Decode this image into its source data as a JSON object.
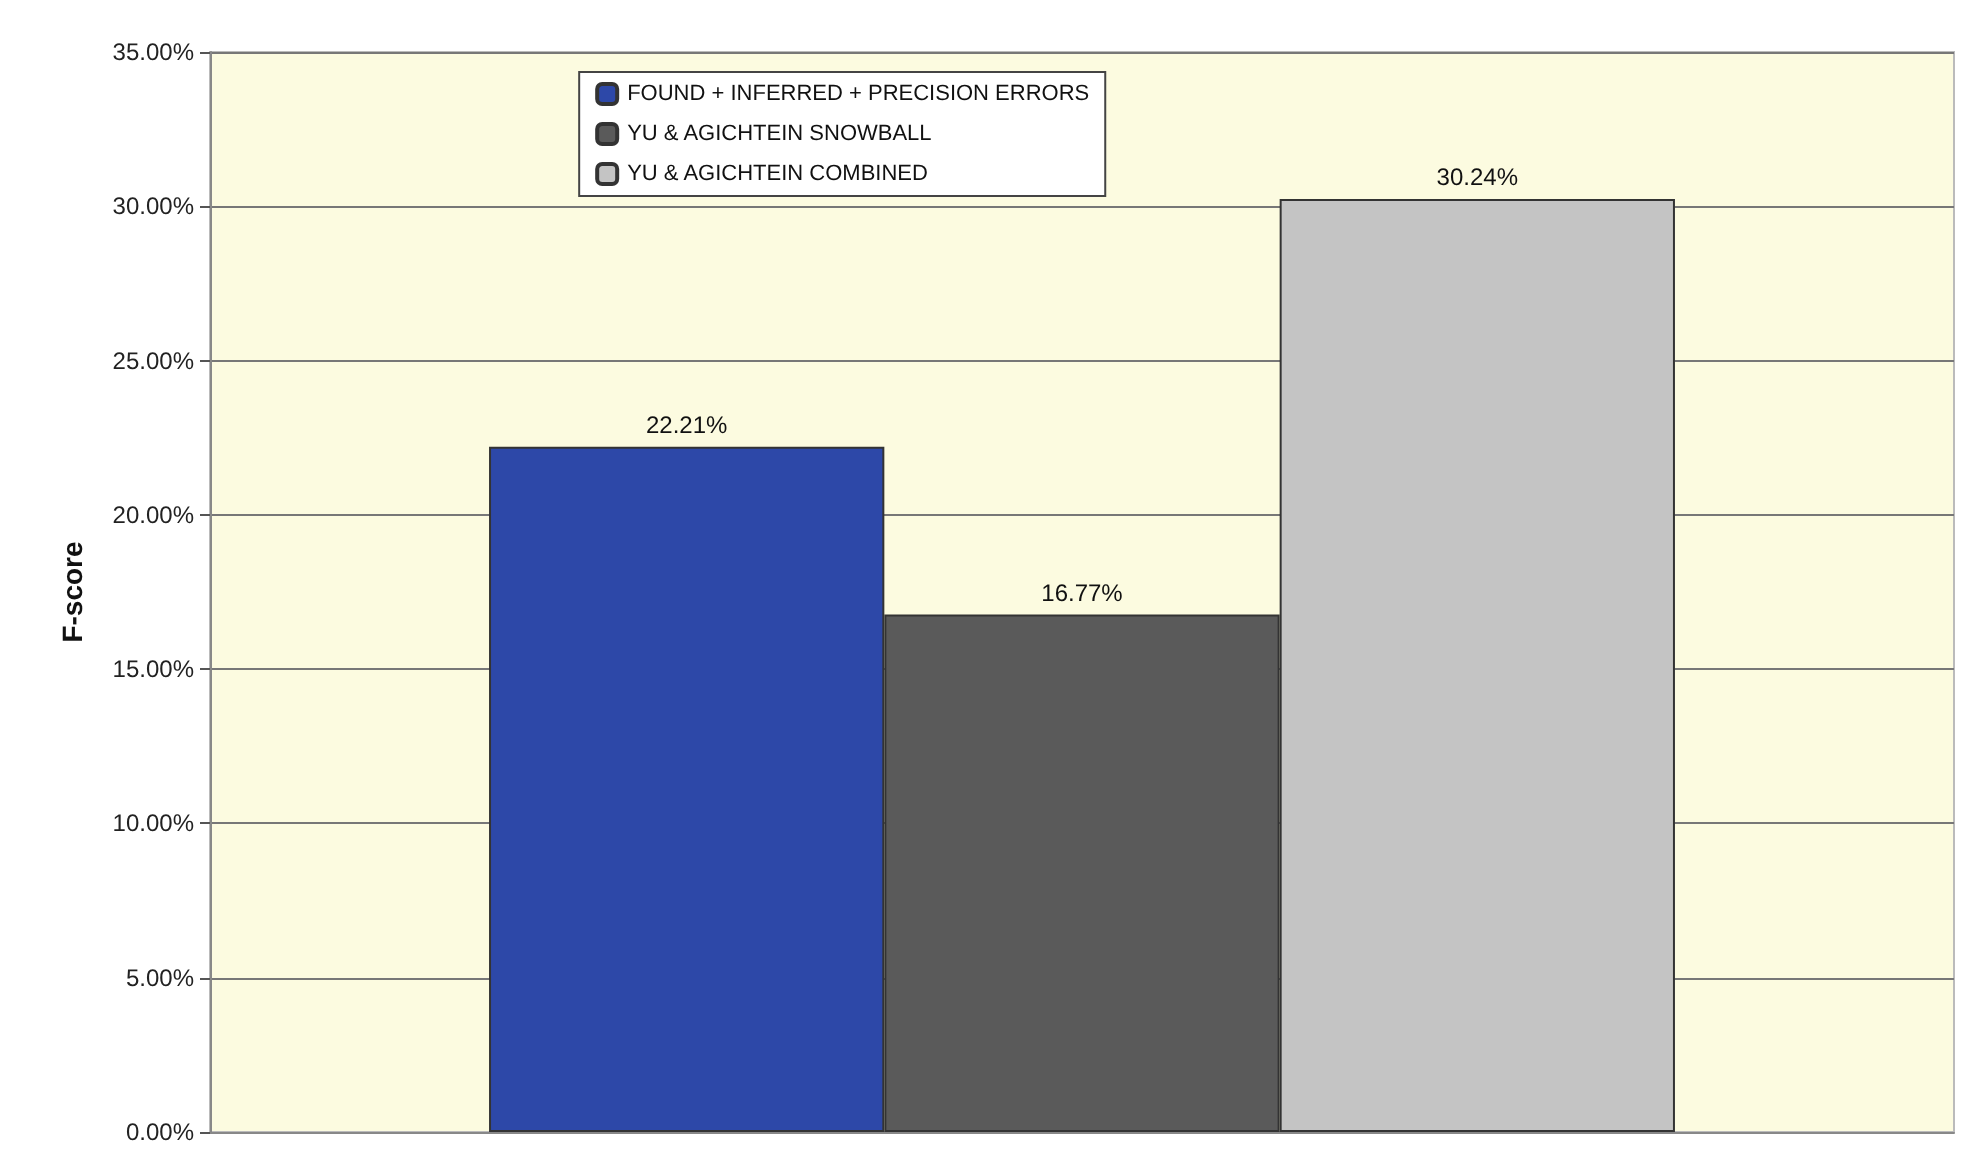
{
  "chart_data": {
    "type": "bar",
    "ylabel": "F-score",
    "categories": [
      null
    ],
    "series": [
      {
        "name": "FOUND + INFERRED + PRECISION ERRORS",
        "color": "#2d48a8",
        "values": [
          22.21
        ],
        "value_labels": [
          "22.21%"
        ]
      },
      {
        "name": "YU & AGICHTEIN SNOWBALL",
        "color": "#5a5a5a",
        "values": [
          16.77
        ],
        "value_labels": [
          "16.77%"
        ]
      },
      {
        "name": "YU & AGICHTEIN COMBINED",
        "color": "#c4c4c4",
        "values": [
          30.24
        ],
        "value_labels": [
          "30.24%"
        ]
      }
    ],
    "ylim": [
      0,
      35
    ],
    "yticks": [
      {
        "value": 0,
        "label": "0.00%"
      },
      {
        "value": 5,
        "label": "5.00%"
      },
      {
        "value": 10,
        "label": "10.00%"
      },
      {
        "value": 15,
        "label": "15.00%"
      },
      {
        "value": 20,
        "label": "20.00%"
      },
      {
        "value": 25,
        "label": "25.00%"
      },
      {
        "value": 30,
        "label": "30.00%"
      },
      {
        "value": 35,
        "label": "35.00%"
      }
    ],
    "grid": "y",
    "legend": "top left"
  }
}
